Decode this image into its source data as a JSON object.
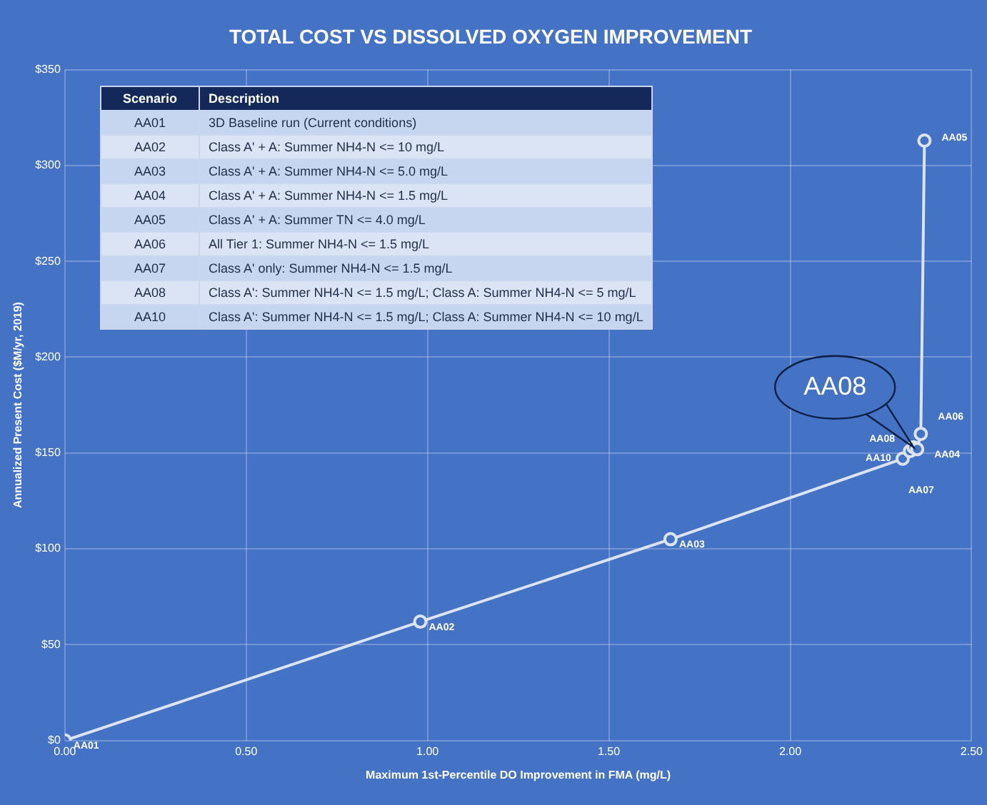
{
  "chart_data": {
    "type": "line",
    "title": "TOTAL COST VS DISSOLVED OXYGEN IMPROVEMENT",
    "xlabel": "Maximum 1st-Percentile DO Improvement in FMA (mg/L)",
    "ylabel": "Annualized Present Cost ($M/yr, 2019)",
    "xlim": [
      0,
      2.5
    ],
    "xticks": [
      {
        "value": 0,
        "label": "0.00"
      },
      {
        "value": 0.5,
        "label": "0.50"
      },
      {
        "value": 1,
        "label": "1.00"
      },
      {
        "value": 1.5,
        "label": "1.50"
      },
      {
        "value": 2,
        "label": "2.00"
      },
      {
        "value": 2.5,
        "label": "2.50"
      }
    ],
    "ylim": [
      0,
      350
    ],
    "yticks": [
      {
        "value": 0,
        "label": "$0"
      },
      {
        "value": 50,
        "label": "$50"
      },
      {
        "value": 100,
        "label": "$100"
      },
      {
        "value": 150,
        "label": "$150"
      },
      {
        "value": 200,
        "label": "$200"
      },
      {
        "value": 250,
        "label": "$250"
      },
      {
        "value": 300,
        "label": "$300"
      },
      {
        "value": 350,
        "label": "$350"
      }
    ],
    "grid": true,
    "legend": false,
    "marker": "circle",
    "line_style": "solid",
    "series": [
      {
        "color": "#dce4f2",
        "x": [
          0,
          0.98,
          1.67,
          2.31,
          2.33,
          2.34,
          2.35,
          2.36,
          2.37
        ],
        "values": [
          0,
          62,
          105,
          147,
          151,
          153,
          152,
          160,
          313
        ],
        "value_labels": [
          "AA01",
          "AA02",
          "AA03",
          "AA07",
          "AA10",
          "AA08",
          "AA04",
          "AA06",
          "AA05"
        ]
      }
    ],
    "annotations": [
      {
        "text": "AA08",
        "x": 2.34,
        "y": 153
      },
      "Scenario",
      "Description",
      "AA01",
      "3D Baseline run (Current conditions)",
      "AA02",
      "Class A' + A: Summer NH4-N <= 10 mg/L",
      "AA03",
      "Class A' + A: Summer NH4-N <= 5.0 mg/L",
      "AA04",
      "Class A' + A: Summer NH4-N <= 1.5 mg/L",
      "AA05",
      "Class A' + A: Summer TN <= 4.0 mg/L",
      "AA06",
      "All Tier 1: Summer NH4-N <= 1.5 mg/L",
      "AA07",
      "Class A' only: Summer NH4-N <= 1.5 mg/L",
      "AA08",
      "Class A': Summer NH4-N <= 1.5 mg/L; Class A: Summer NH4-N <= 5 mg/L",
      "AA10",
      "Class A': Summer NH4-N <= 1.5 mg/L; Class A: Summer NH4-N <= 10 mg/L"
    ]
  }
}
